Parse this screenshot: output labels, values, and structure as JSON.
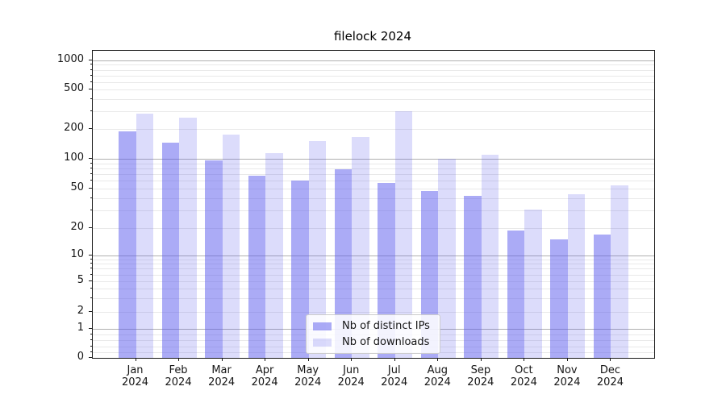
{
  "title": "filelock 2024",
  "colors": {
    "accent_base": "#5858ee",
    "bar_distinct_ips": "rgba(88,88,238,0.5)",
    "bar_downloads": "rgba(88,88,238,0.21)",
    "grid_major": "#b0b0b0",
    "grid_minor": "#e9e9e9",
    "spine": "#1a1a1a"
  },
  "legend": {
    "items": [
      {
        "label": "Nb of distinct IPs"
      },
      {
        "label": "Nb of downloads"
      }
    ]
  },
  "chart_data": {
    "type": "bar",
    "title": "filelock 2024",
    "categories": [
      "Jan 2024",
      "Feb 2024",
      "Mar 2024",
      "Apr 2024",
      "May 2024",
      "Jun 2024",
      "Jul 2024",
      "Aug 2024",
      "Sep 2024",
      "Oct 2024",
      "Nov 2024",
      "Dec 2024"
    ],
    "series": [
      {
        "name": "Nb of distinct IPs",
        "color": "rgba(88,88,238,0.5)",
        "values": [
          190,
          145,
          97,
          68,
          60,
          78,
          57,
          47,
          42,
          19,
          15,
          17
        ]
      },
      {
        "name": "Nb of downloads",
        "color": "rgba(88,88,238,0.21)",
        "values": [
          285,
          260,
          175,
          113,
          150,
          165,
          300,
          100,
          110,
          31,
          44,
          54
        ]
      }
    ],
    "xlabel": "",
    "ylabel": "",
    "yscale": "symlog-like (log above 1, linear 0-1)",
    "ylim": [
      0,
      1250
    ],
    "yticks_labeled": [
      0,
      1,
      2,
      5,
      10,
      20,
      50,
      100,
      200,
      500,
      1000
    ],
    "yticks_major_gridlines": [
      1,
      10,
      100,
      1000
    ],
    "yticks_minor_unlabeled": [
      0.2,
      0.4,
      0.6,
      0.8,
      3,
      4,
      6,
      7,
      8,
      9,
      30,
      40,
      60,
      70,
      80,
      90,
      300,
      400,
      600,
      700,
      800,
      900
    ],
    "grid": "both",
    "legend_position": "lower center"
  }
}
